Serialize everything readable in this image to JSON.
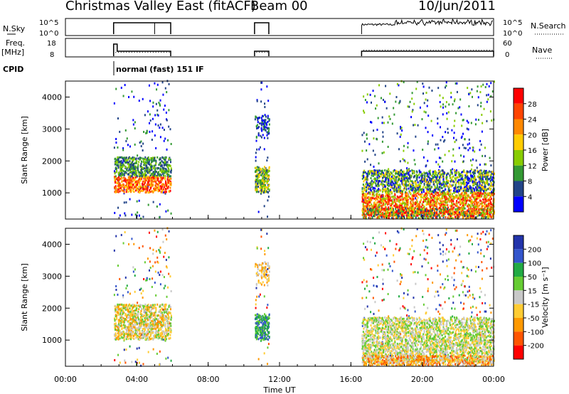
{
  "title": "Christmas Valley East (fitACF)",
  "beam": "Beam 00",
  "date": "10/Jun/2011",
  "nsky": {
    "label": "N.Sky",
    "ticks": [
      "10^5",
      "10^0"
    ]
  },
  "nsearch": {
    "label": "N.Search",
    "ticks": [
      "10^5",
      "10^0"
    ]
  },
  "freq": {
    "label_line1": "Freq.",
    "label_line2": "[MHz]",
    "ticks": [
      "18",
      "8"
    ]
  },
  "nave": {
    "label": "Nave",
    "ticks": [
      "60",
      "0"
    ]
  },
  "cpid": {
    "label": "CPID",
    "mode": "normal (fast) 151 IF"
  },
  "colors": {
    "frame": "#000000",
    "scatter_gray": "#c8c8c8"
  },
  "chart_data": [
    {
      "type": "heatmap",
      "ylabel": "Slant Range [km]",
      "yticks": [
        "4000",
        "3000",
        "2000",
        "1000"
      ],
      "ylim": [
        180,
        4500
      ],
      "colorbar": {
        "label": "Power [dB]",
        "ticks": [
          "28",
          "24",
          "20",
          "16",
          "12",
          "8",
          "4"
        ],
        "colors": [
          "#ff0000",
          "#ff4400",
          "#ff8800",
          "#ffcc00",
          "#88cc00",
          "#339933",
          "#224488",
          "#0000ff"
        ]
      },
      "regions": [
        {
          "t": [
            2.7,
            5.9
          ],
          "r": [
            1000,
            2100
          ],
          "level": "16-28 dB"
        },
        {
          "t": [
            10.6,
            11.4
          ],
          "r": [
            1000,
            1800
          ],
          "level": "8-20 dB"
        },
        {
          "t": [
            16.6,
            24.0
          ],
          "r": [
            300,
            1700
          ],
          "level": "4-28 dB"
        }
      ]
    },
    {
      "type": "heatmap",
      "ylabel": "Slant Range [km]",
      "xlabel": "Time UT",
      "xticks": [
        "00:00",
        "04:00",
        "08:00",
        "12:00",
        "16:00",
        "20:00",
        "00:00"
      ],
      "xlim": [
        0,
        24
      ],
      "yticks": [
        "4000",
        "3000",
        "2000",
        "1000"
      ],
      "ylim": [
        180,
        4500
      ],
      "colorbar": {
        "label": "Velocity [m s⁻¹]",
        "ticks": [
          "200",
          "100",
          "50",
          "15",
          "-15",
          "-50",
          "-100",
          "-200"
        ],
        "colors": [
          "#2233aa",
          "#3355cc",
          "#22aa44",
          "#66cc33",
          "#c8c8c8",
          "#ffcc33",
          "#ff9900",
          "#ff5500",
          "#ff0000"
        ]
      },
      "regions": [
        {
          "t": [
            2.7,
            5.9
          ],
          "r": [
            1000,
            2100
          ],
          "level": "-50 to 15 m/s"
        },
        {
          "t": [
            10.6,
            11.4
          ],
          "r": [
            1000,
            1800
          ],
          "level": "15-200 m/s"
        },
        {
          "t": [
            16.6,
            24.0
          ],
          "r": [
            300,
            1700
          ],
          "level": "-15 to 15 m/s"
        }
      ]
    }
  ]
}
